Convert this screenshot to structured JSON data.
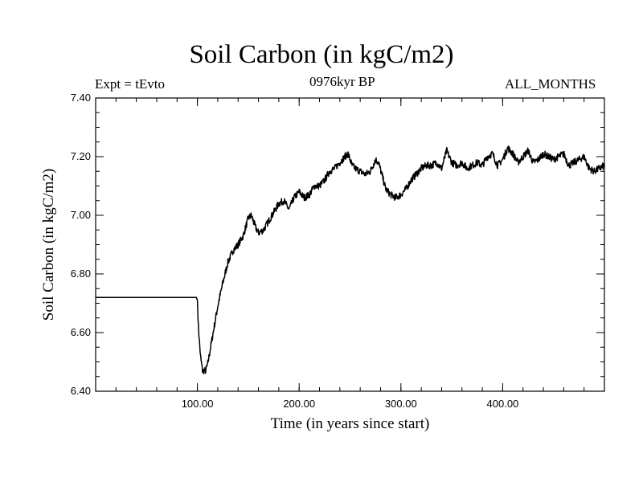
{
  "chart_data": {
    "type": "line",
    "title": "Soil Carbon (in kgC/m2)",
    "subtitle_left": "Expt = tEvto",
    "subtitle_center": "0976kyr BP",
    "subtitle_right": "ALL_MONTHS",
    "xlabel": "Time (in years since start)",
    "ylabel": "Soil Carbon (in kgC/m2)",
    "xlim": [
      0,
      500
    ],
    "ylim": [
      6.4,
      7.4
    ],
    "x_ticks": [
      100,
      200,
      300,
      400
    ],
    "x_tick_labels": [
      "100.00",
      "200.00",
      "300.00",
      "400.00"
    ],
    "y_ticks": [
      6.4,
      6.6,
      6.8,
      7.0,
      7.2,
      7.4
    ],
    "y_tick_labels": [
      "6.40",
      "6.60",
      "6.80",
      "7.00",
      "7.20",
      "7.40"
    ],
    "series": [
      {
        "name": "Soil Carbon",
        "color": "#000000",
        "noise": 0.012,
        "x": [
          0,
          99,
          100,
          101,
          103,
          105,
          108,
          110,
          113,
          117,
          120,
          125,
          130,
          135,
          140,
          145,
          150,
          153,
          157,
          160,
          165,
          170,
          175,
          180,
          185,
          190,
          195,
          200,
          205,
          210,
          215,
          220,
          225,
          230,
          235,
          240,
          245,
          248,
          252,
          255,
          260,
          265,
          270,
          275,
          278,
          282,
          285,
          290,
          295,
          300,
          305,
          310,
          315,
          320,
          325,
          330,
          335,
          340,
          345,
          350,
          355,
          360,
          365,
          370,
          375,
          380,
          385,
          390,
          395,
          400,
          405,
          410,
          415,
          420,
          425,
          430,
          435,
          440,
          445,
          450,
          455,
          460,
          465,
          470,
          475,
          480,
          485,
          490,
          495,
          500
        ],
        "y": [
          6.72,
          6.72,
          6.71,
          6.62,
          6.52,
          6.47,
          6.47,
          6.49,
          6.55,
          6.63,
          6.69,
          6.77,
          6.84,
          6.88,
          6.9,
          6.93,
          6.99,
          7.0,
          6.96,
          6.94,
          6.95,
          6.98,
          7.01,
          7.04,
          7.05,
          7.02,
          7.06,
          7.08,
          7.06,
          7.07,
          7.1,
          7.1,
          7.12,
          7.15,
          7.16,
          7.18,
          7.2,
          7.21,
          7.17,
          7.16,
          7.15,
          7.14,
          7.15,
          7.19,
          7.18,
          7.13,
          7.09,
          7.07,
          7.06,
          7.07,
          7.09,
          7.12,
          7.14,
          7.16,
          7.17,
          7.17,
          7.18,
          7.16,
          7.22,
          7.18,
          7.17,
          7.18,
          7.16,
          7.17,
          7.18,
          7.17,
          7.2,
          7.21,
          7.17,
          7.19,
          7.23,
          7.21,
          7.18,
          7.2,
          7.22,
          7.18,
          7.19,
          7.21,
          7.2,
          7.19,
          7.2,
          7.21,
          7.17,
          7.18,
          7.19,
          7.2,
          7.16,
          7.15,
          7.16,
          7.17
        ]
      }
    ]
  }
}
